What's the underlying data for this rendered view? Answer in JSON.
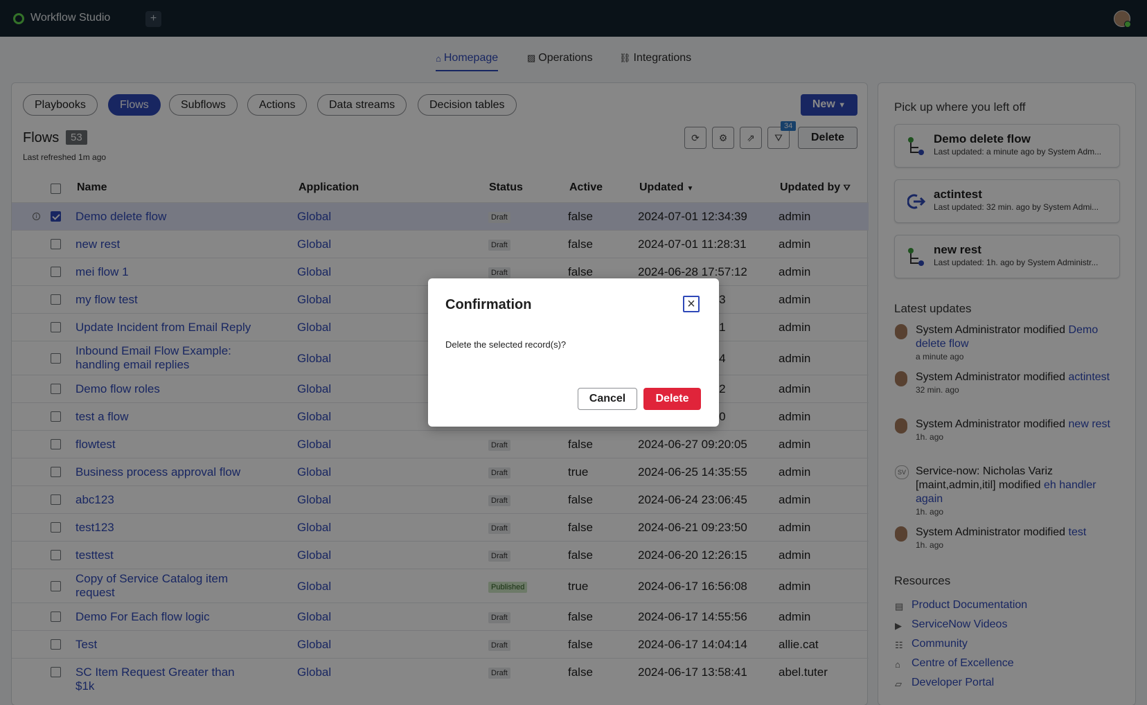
{
  "topbar": {
    "title": "Workflow Studio",
    "plus": "+"
  },
  "nav": {
    "tabs": [
      {
        "label": "Homepage",
        "icon": "home-icon"
      },
      {
        "label": "Operations",
        "icon": "chart-icon"
      },
      {
        "label": "Integrations",
        "icon": "link-icon"
      }
    ]
  },
  "filters": {
    "chips": [
      "Playbooks",
      "Flows",
      "Subflows",
      "Actions",
      "Data streams",
      "Decision tables"
    ],
    "active": "Flows"
  },
  "toolbar": {
    "new_label": "New",
    "delete_label": "Delete",
    "filter_count": "34"
  },
  "list": {
    "title": "Flows",
    "count": "53",
    "refreshed": "Last refreshed 1m ago",
    "columns": [
      "Name",
      "Application",
      "Status",
      "Active",
      "Updated",
      "Updated by"
    ],
    "rows": [
      {
        "name": "Demo delete flow",
        "app": "Global",
        "status": "Draft",
        "active": "false",
        "updated": "2024-07-01 12:34:39",
        "by": "admin"
      },
      {
        "name": "new rest",
        "app": "Global",
        "status": "Draft",
        "active": "false",
        "updated": "2024-07-01 11:28:31",
        "by": "admin"
      },
      {
        "name": "mei flow 1",
        "app": "Global",
        "status": "Draft",
        "active": "false",
        "updated": "2024-06-28 17:57:12",
        "by": "admin"
      },
      {
        "name": "my flow test",
        "app": "Global",
        "status": "",
        "active": "",
        "updated": "05:23",
        "by": "admin"
      },
      {
        "name": "Update Incident from Email Reply",
        "app": "Global",
        "status": "",
        "active": "",
        "updated": "59:21",
        "by": "admin"
      },
      {
        "name": "Inbound Email Flow Example: handling email replies",
        "app": "Global",
        "status": "",
        "active": "",
        "updated": "31:24",
        "by": "admin"
      },
      {
        "name": "Demo flow roles",
        "app": "Global",
        "status": "",
        "active": "",
        "updated": "47:02",
        "by": "admin"
      },
      {
        "name": "test a flow",
        "app": "Global",
        "status": "",
        "active": "",
        "updated": "21:30",
        "by": "admin"
      },
      {
        "name": "flowtest",
        "app": "Global",
        "status": "Draft",
        "active": "false",
        "updated": "2024-06-27 09:20:05",
        "by": "admin"
      },
      {
        "name": "Business process approval flow",
        "app": "Global",
        "status": "Draft",
        "active": "true",
        "updated": "2024-06-25 14:35:55",
        "by": "admin"
      },
      {
        "name": "abc123",
        "app": "Global",
        "status": "Draft",
        "active": "false",
        "updated": "2024-06-24 23:06:45",
        "by": "admin"
      },
      {
        "name": "test123",
        "app": "Global",
        "status": "Draft",
        "active": "false",
        "updated": "2024-06-21 09:23:50",
        "by": "admin"
      },
      {
        "name": "testtest",
        "app": "Global",
        "status": "Draft",
        "active": "false",
        "updated": "2024-06-20 12:26:15",
        "by": "admin"
      },
      {
        "name": "Copy of Service Catalog item request",
        "app": "Global",
        "status": "Published",
        "active": "true",
        "updated": "2024-06-17 16:56:08",
        "by": "admin"
      },
      {
        "name": "Demo For Each flow logic",
        "app": "Global",
        "status": "Draft",
        "active": "false",
        "updated": "2024-06-17 14:55:56",
        "by": "admin"
      },
      {
        "name": "Test",
        "app": "Global",
        "status": "Draft",
        "active": "false",
        "updated": "2024-06-17 14:04:14",
        "by": "allie.cat"
      },
      {
        "name": "SC Item Request Greater than $1k",
        "app": "Global",
        "status": "Draft",
        "active": "false",
        "updated": "2024-06-17 13:58:41",
        "by": "abel.tuter"
      }
    ]
  },
  "side": {
    "pickup_title": "Pick up where you left off",
    "cards": [
      {
        "title": "Demo delete flow",
        "sub": "Last updated: a minute ago by System Adm..."
      },
      {
        "title": "actintest",
        "sub": "Last updated: 32 min. ago by System Admi..."
      },
      {
        "title": "new rest",
        "sub": "Last updated: 1h. ago by System Administr..."
      }
    ],
    "updates_title": "Latest updates",
    "updates": [
      {
        "text": "System Administrator modified",
        "link": "Demo delete flow",
        "time": "a minute ago"
      },
      {
        "text": "System Administrator modified",
        "link": "actintest",
        "time": "32 min. ago"
      },
      {
        "text": "System Administrator modified",
        "link": "new rest",
        "time": "1h. ago"
      },
      {
        "text": "Service-now: Nicholas Variz [maint,admin,itil] modified",
        "link": "eh handler again",
        "time": "1h. ago",
        "initials": "SV"
      },
      {
        "text": "System Administrator modified",
        "link": "test",
        "time": "1h. ago"
      }
    ],
    "resources_title": "Resources",
    "resources": [
      "Product Documentation",
      "ServiceNow Videos",
      "Community",
      "Centre of Excellence",
      "Developer Portal"
    ]
  },
  "modal": {
    "title": "Confirmation",
    "message": "Delete the selected record(s)?",
    "cancel": "Cancel",
    "delete": "Delete"
  }
}
